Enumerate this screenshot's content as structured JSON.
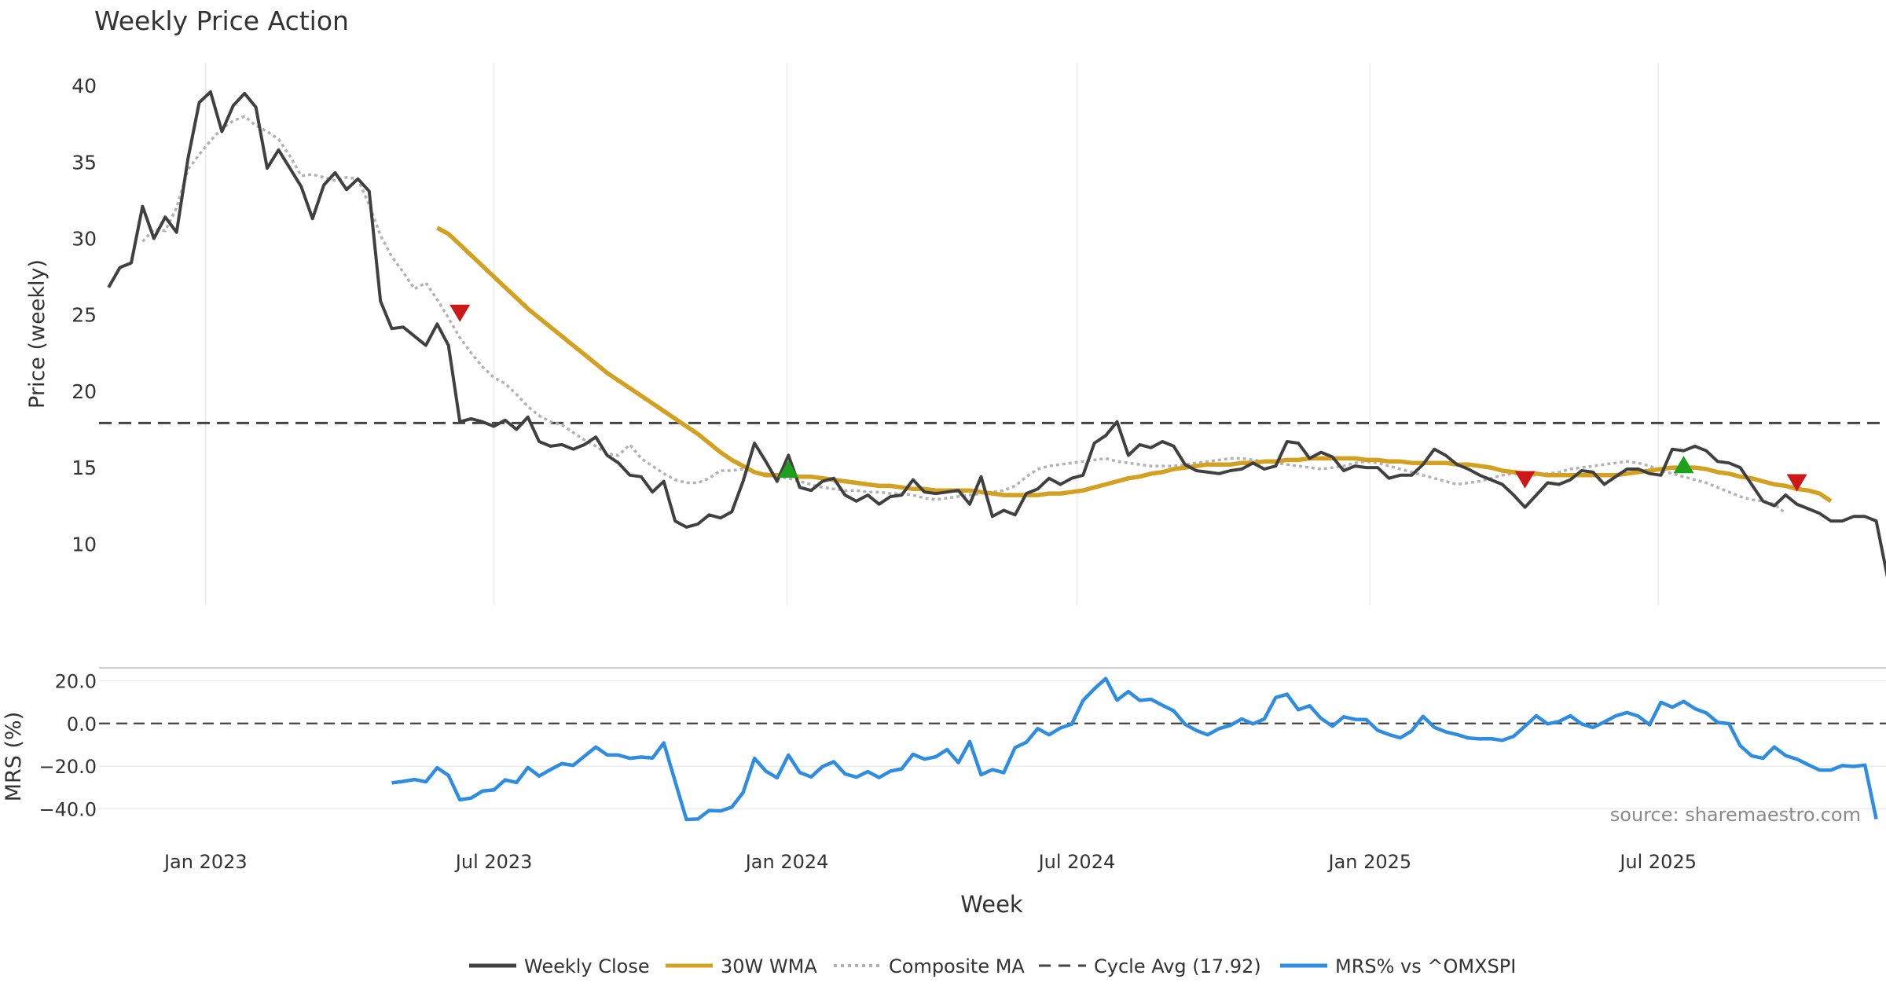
{
  "colors": {
    "close": "#404040",
    "wma": "#d4a020",
    "composite": "#b3b3b3",
    "cycle": "#444444",
    "mrs": "#2e8de0",
    "zero": "#444444",
    "grid": "#ebebeb",
    "buy": "#1ea01e",
    "sell": "#cc1818",
    "text": "#333333",
    "source": "#8a8a8a"
  },
  "chart_data": {
    "type": "line",
    "title": "Weekly Price Action",
    "xlabel": "Week",
    "source": "source: sharemaestro.com",
    "x_ticks": [
      {
        "label": "Jan 2023",
        "date": "2023-01-01"
      },
      {
        "label": "Jul 2023",
        "date": "2023-07-01"
      },
      {
        "label": "Jan 2024",
        "date": "2024-01-01"
      },
      {
        "label": "Jul 2024",
        "date": "2024-07-01"
      },
      {
        "label": "Jan 2025",
        "date": "2025-01-01"
      },
      {
        "label": "Jul 2025",
        "date": "2025-07-01"
      }
    ],
    "x_range": [
      "2022-10-26",
      "2025-11-21"
    ],
    "price_panel": {
      "ylabel": "Price (weekly)",
      "ylim": [
        6.0,
        41.5
      ],
      "yticks": [
        10,
        15,
        20,
        25,
        30,
        35,
        40
      ],
      "cycle_avg": 17.92,
      "weekly_close": [
        26.8,
        28.1,
        28.4,
        32.1,
        30.0,
        31.4,
        30.4,
        35.2,
        38.9,
        39.6,
        37.0,
        38.7,
        39.5,
        38.6,
        34.6,
        35.8,
        34.6,
        33.4,
        31.3,
        33.5,
        34.3,
        33.2,
        33.9,
        33.1,
        25.9,
        24.1,
        24.2,
        23.6,
        23.0,
        24.4,
        23.0,
        18.0,
        18.2,
        18.0,
        17.7,
        18.1,
        17.5,
        18.3,
        16.7,
        16.4,
        16.5,
        16.2,
        16.5,
        17.0,
        15.8,
        15.3,
        14.5,
        14.4,
        13.4,
        14.1,
        11.5,
        11.1,
        11.3,
        11.9,
        11.7,
        12.1,
        14.1,
        16.6,
        15.4,
        14.1,
        15.8,
        13.7,
        13.5,
        14.1,
        14.3,
        13.2,
        12.8,
        13.2,
        12.6,
        13.1,
        13.2,
        14.2,
        13.4,
        13.3,
        13.4,
        13.5,
        12.6,
        14.4,
        11.8,
        12.2,
        11.9,
        13.3,
        13.6,
        14.3,
        13.9,
        14.3,
        14.5,
        16.6,
        17.1,
        18.0,
        15.8,
        16.5,
        16.3,
        16.7,
        16.4,
        15.2,
        14.8,
        14.7,
        14.6,
        14.8,
        14.9,
        15.3,
        14.9,
        15.1,
        16.7,
        16.6,
        15.6,
        16.0,
        15.7,
        14.8,
        15.1,
        15.0,
        15.0,
        14.3,
        14.5,
        14.5,
        15.2,
        16.2,
        15.8,
        15.2,
        14.9,
        14.5,
        14.2,
        13.9,
        13.2,
        12.4,
        13.2,
        14.0,
        13.9,
        14.2,
        14.8,
        14.7,
        13.9,
        14.4,
        14.9,
        14.9,
        14.6,
        14.5,
        16.2,
        16.1,
        16.4,
        16.1,
        15.4,
        15.3,
        15.0,
        13.9,
        12.8,
        12.5,
        13.2,
        12.6,
        12.3,
        12.0,
        11.5,
        11.5,
        11.8,
        11.8,
        11.5,
        7.8
      ],
      "composite_ma_start": 3,
      "composite_ma": [
        29.8,
        30.6,
        30.5,
        32.0,
        34.5,
        35.5,
        36.4,
        37.2,
        37.7,
        38.0,
        37.4,
        37.0,
        36.5,
        35.4,
        34.1,
        34.2,
        34.0,
        33.8,
        34.0,
        33.9,
        32.2,
        30.2,
        28.8,
        27.8,
        26.7,
        27.1,
        26.0,
        24.8,
        23.5,
        22.5,
        21.6,
        20.9,
        20.5,
        19.8,
        19.0,
        18.4,
        18.0,
        17.8,
        17.3,
        16.8,
        16.4,
        15.9,
        15.8,
        16.5,
        15.6,
        15.1,
        14.6,
        14.2,
        14.0,
        14.0,
        14.3,
        14.8,
        14.8,
        14.9,
        14.7,
        14.6,
        14.4,
        14.3,
        14.1,
        13.9,
        13.7,
        13.6,
        13.5,
        13.5,
        13.4,
        13.4,
        13.3,
        13.3,
        13.2,
        13.0,
        12.9,
        13.0,
        13.1,
        13.2,
        13.3,
        13.4,
        13.5,
        13.8,
        14.4,
        14.9,
        15.1,
        15.2,
        15.3,
        15.4,
        15.5,
        15.6,
        15.4,
        15.3,
        15.2,
        15.1,
        15.1,
        15.1,
        15.2,
        15.3,
        15.4,
        15.5,
        15.6,
        15.6,
        15.5,
        15.4,
        15.3,
        15.2,
        15.1,
        15.0,
        14.9,
        15.0,
        15.1,
        15.3,
        15.4,
        15.3,
        15.1,
        14.9,
        14.7,
        14.5,
        14.3,
        14.1,
        13.9,
        14.0,
        14.1,
        14.3,
        14.5,
        14.6,
        14.5,
        14.5,
        14.6,
        14.7,
        14.9,
        15.0,
        15.1,
        15.2,
        15.3,
        15.4,
        15.3,
        15.1,
        14.8,
        14.6,
        14.4,
        14.2,
        14.0,
        13.7,
        13.4,
        13.1,
        12.9,
        12.8,
        12.6,
        12.0
      ],
      "wma_start": 29,
      "wma_30w": [
        30.7,
        30.3,
        29.6,
        28.9,
        28.2,
        27.5,
        26.8,
        26.1,
        25.4,
        24.8,
        24.2,
        23.6,
        23.0,
        22.4,
        21.8,
        21.2,
        20.7,
        20.2,
        19.7,
        19.2,
        18.7,
        18.2,
        17.7,
        17.2,
        16.6,
        16.0,
        15.5,
        15.1,
        14.7,
        14.5,
        14.5,
        14.5,
        14.4,
        14.4,
        14.3,
        14.2,
        14.1,
        14.0,
        13.9,
        13.8,
        13.8,
        13.7,
        13.6,
        13.6,
        13.5,
        13.5,
        13.5,
        13.5,
        13.4,
        13.3,
        13.2,
        13.2,
        13.2,
        13.2,
        13.3,
        13.3,
        13.4,
        13.5,
        13.7,
        13.9,
        14.1,
        14.3,
        14.4,
        14.6,
        14.7,
        14.9,
        15.0,
        15.1,
        15.2,
        15.2,
        15.2,
        15.3,
        15.3,
        15.4,
        15.4,
        15.5,
        15.5,
        15.6,
        15.6,
        15.6,
        15.6,
        15.6,
        15.5,
        15.5,
        15.4,
        15.4,
        15.3,
        15.3,
        15.3,
        15.3,
        15.2,
        15.2,
        15.1,
        15.0,
        14.8,
        14.7,
        14.6,
        14.6,
        14.5,
        14.5,
        14.5,
        14.5,
        14.5,
        14.5,
        14.5,
        14.6,
        14.7,
        14.8,
        14.9,
        15.0,
        15.0,
        15.0,
        14.9,
        14.7,
        14.6,
        14.4,
        14.3,
        14.1,
        13.9,
        13.8,
        13.6,
        13.5,
        13.3,
        12.8
      ],
      "signals": [
        {
          "type": "sell",
          "week": 31,
          "price": 25.2
        },
        {
          "type": "buy",
          "week": 60,
          "price": 14.8
        },
        {
          "type": "sell",
          "week": 125,
          "price": 14.3
        },
        {
          "type": "buy",
          "week": 139,
          "price": 15.1
        },
        {
          "type": "sell",
          "week": 149,
          "price": 14.1
        }
      ]
    },
    "mrs_panel": {
      "ylabel": "MRS (%)",
      "ylim": [
        -53,
        26
      ],
      "yticks": [
        20.0,
        0.0,
        -20.0,
        -40.0
      ],
      "ytick_labels": [
        "20.0",
        "0.0",
        "−20.0",
        "−40.0"
      ],
      "mrs_start": 25,
      "mrs": [
        -27.8,
        -27.1,
        -26.2,
        -27.3,
        -20.7,
        -24.3,
        -35.7,
        -34.9,
        -31.6,
        -31.1,
        -26.4,
        -27.6,
        -20.6,
        -24.6,
        -21.6,
        -18.8,
        -19.6,
        -15.3,
        -11.0,
        -14.7,
        -14.8,
        -16.3,
        -15.7,
        -16.2,
        -9.1,
        -27.1,
        -44.9,
        -44.7,
        -40.7,
        -40.9,
        -39.2,
        -32.3,
        -16.3,
        -22.3,
        -25.4,
        -14.8,
        -22.9,
        -25.0,
        -20.2,
        -17.9,
        -23.6,
        -25.1,
        -22.5,
        -25.3,
        -22.3,
        -21.2,
        -14.4,
        -16.7,
        -15.6,
        -12.2,
        -18.3,
        -8.5,
        -24.0,
        -21.6,
        -23.0,
        -11.3,
        -8.8,
        -2.4,
        -5.3,
        -2.1,
        -0.3,
        10.7,
        16.2,
        21.0,
        10.9,
        14.9,
        10.8,
        11.3,
        8.5,
        5.9,
        -0.4,
        -3.3,
        -5.3,
        -2.4,
        -0.9,
        2.1,
        -0.2,
        2.1,
        12.1,
        13.6,
        6.4,
        8.3,
        2.4,
        -1.3,
        3.1,
        1.9,
        1.8,
        -3.2,
        -5.2,
        -6.7,
        -3.5,
        3.3,
        -1.8,
        -3.9,
        -5.2,
        -6.8,
        -7.2,
        -7.1,
        -7.9,
        -6.0,
        -1.3,
        3.6,
        -0.2,
        0.9,
        3.6,
        -0.2,
        -1.9,
        0.7,
        3.5,
        5.1,
        3.4,
        -0.6,
        9.9,
        7.6,
        10.3,
        6.9,
        4.9,
        0.5,
        -0.1,
        -10.4,
        -15.1,
        -16.3,
        -11.0,
        -15.0,
        -16.7,
        -19.3,
        -21.8,
        -21.8,
        -19.7,
        -20.1,
        -19.5,
        -44.7
      ]
    },
    "legend": [
      {
        "label": "Weekly Close",
        "style": "solid-dark"
      },
      {
        "label": "30W WMA",
        "style": "solid-gold"
      },
      {
        "label": "Composite MA",
        "style": "dotted-grey"
      },
      {
        "label": "Cycle Avg (17.92)",
        "style": "dashed-dark"
      },
      {
        "label": "MRS% vs ^OMXSPI",
        "style": "solid-blue"
      }
    ]
  }
}
